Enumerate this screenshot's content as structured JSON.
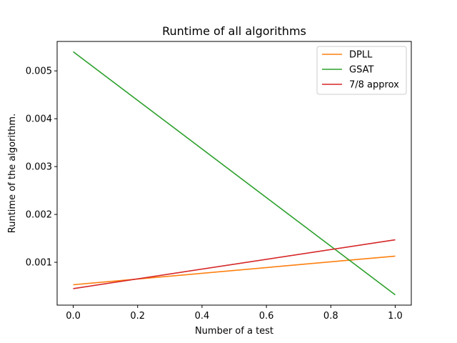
{
  "chart_data": {
    "type": "line",
    "title": "Runtime of all algorithms",
    "xlabel": "Number of a test",
    "ylabel": "Runtime of the algorithm.",
    "xlim": [
      -0.05,
      1.05
    ],
    "ylim": [
      0.000105,
      0.005615
    ],
    "xticks": [
      0.0,
      0.2,
      0.4,
      0.6,
      0.8,
      1.0
    ],
    "xtick_labels": [
      "0.0",
      "0.2",
      "0.4",
      "0.6",
      "0.8",
      "1.0"
    ],
    "yticks": [
      0.001,
      0.002,
      0.003,
      0.004,
      0.005
    ],
    "ytick_labels": [
      "0.001",
      "0.002",
      "0.003",
      "0.004",
      "0.005"
    ],
    "grid": false,
    "legend_position": "upper right",
    "series": [
      {
        "name": "DPLL",
        "color": "#ff7f0e",
        "x": [
          0.0,
          1.0
        ],
        "y": [
          0.00053,
          0.00113
        ]
      },
      {
        "name": "GSAT",
        "color": "#2ca02c",
        "x": [
          0.0,
          1.0
        ],
        "y": [
          0.0054,
          0.00032
        ]
      },
      {
        "name": "7/8 approx",
        "color": "#d62728",
        "x": [
          0.0,
          1.0
        ],
        "y": [
          0.00045,
          0.00147
        ]
      }
    ]
  }
}
